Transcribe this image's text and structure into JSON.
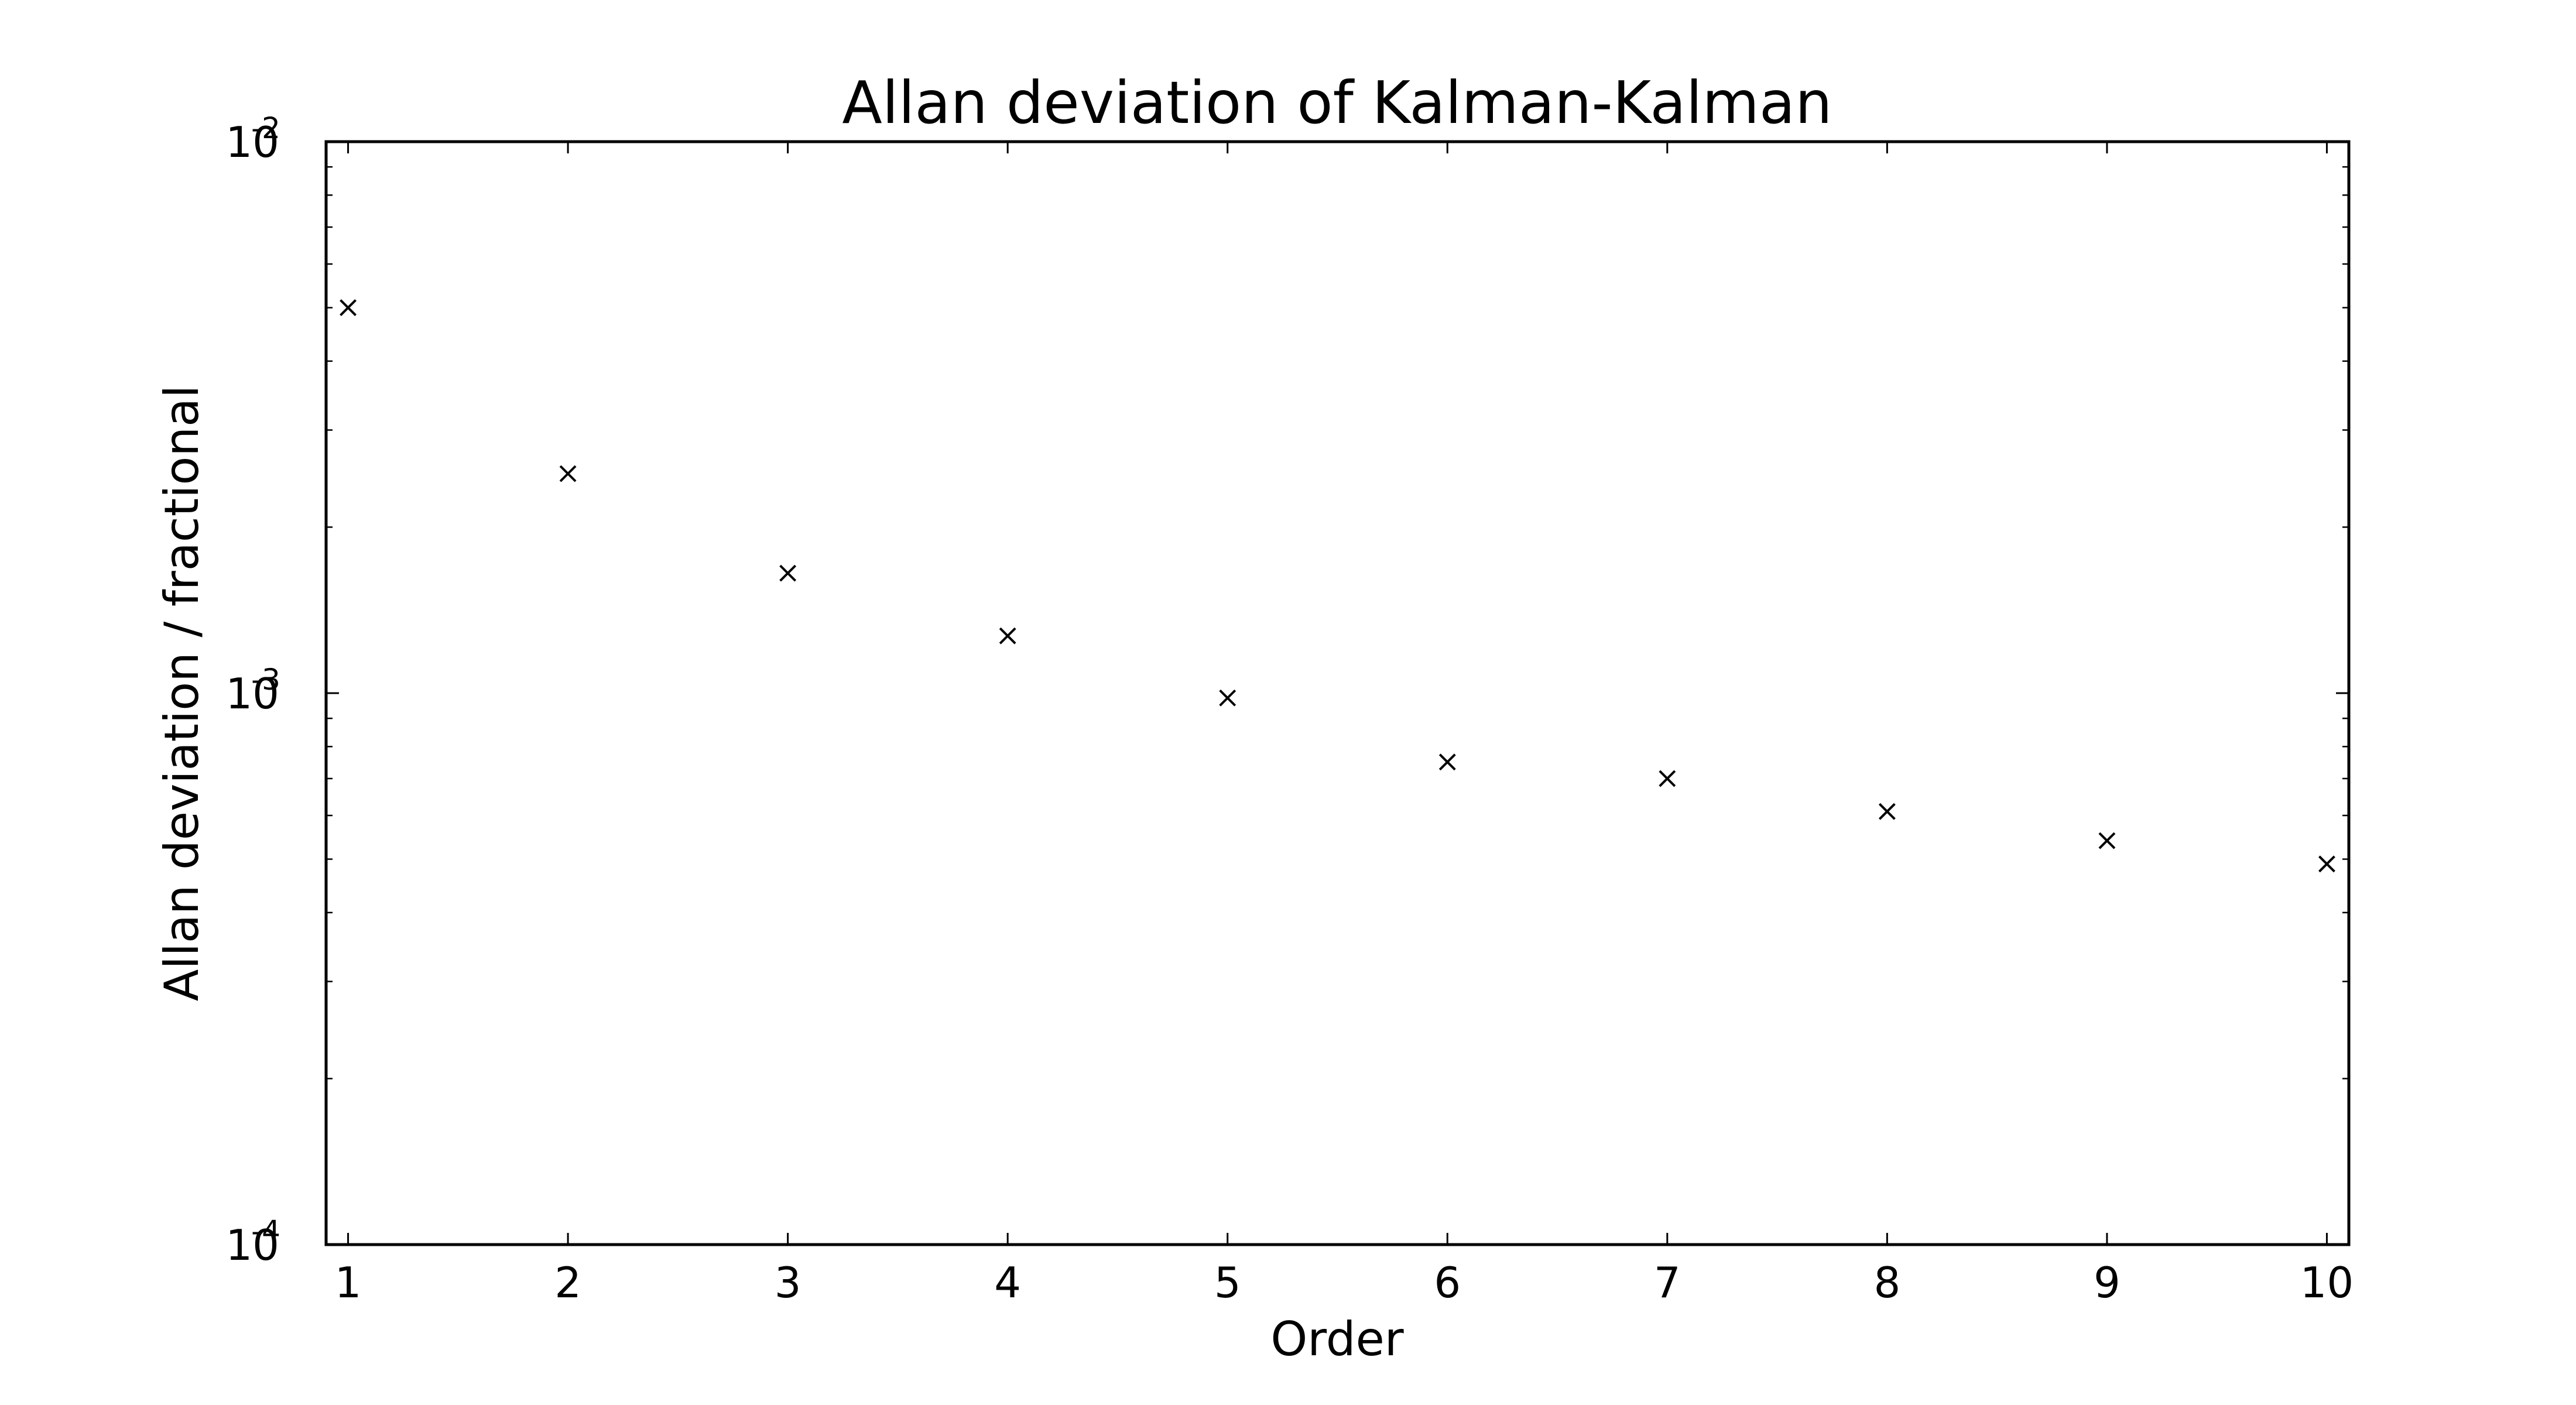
{
  "chart_data": {
    "type": "scatter",
    "title": "Allan deviation of Kalman-Kalman",
    "xlabel": "Order",
    "ylabel": "Allan deviation / fractional",
    "xlim": [
      0.9,
      10.1
    ],
    "ylim": [
      0.0001,
      0.01
    ],
    "yscale": "log",
    "grid": false,
    "legend": "none",
    "marker": "x",
    "color": "#000000",
    "x_ticks": [
      "1",
      "2",
      "3",
      "4",
      "5",
      "6",
      "7",
      "8",
      "9",
      "10"
    ],
    "y_ticks": [
      {
        "value": 0.0001,
        "base": "10",
        "exponent": "-4"
      },
      {
        "value": 0.001,
        "base": "10",
        "exponent": "-3"
      },
      {
        "value": 0.01,
        "base": "10",
        "exponent": "-2"
      }
    ],
    "x": [
      1,
      2,
      3,
      4,
      5,
      6,
      7,
      8,
      9,
      10
    ],
    "y": [
      0.005,
      0.0025,
      0.00165,
      0.00127,
      0.00098,
      0.00075,
      0.0007,
      0.00061,
      0.00054,
      0.00049
    ]
  }
}
